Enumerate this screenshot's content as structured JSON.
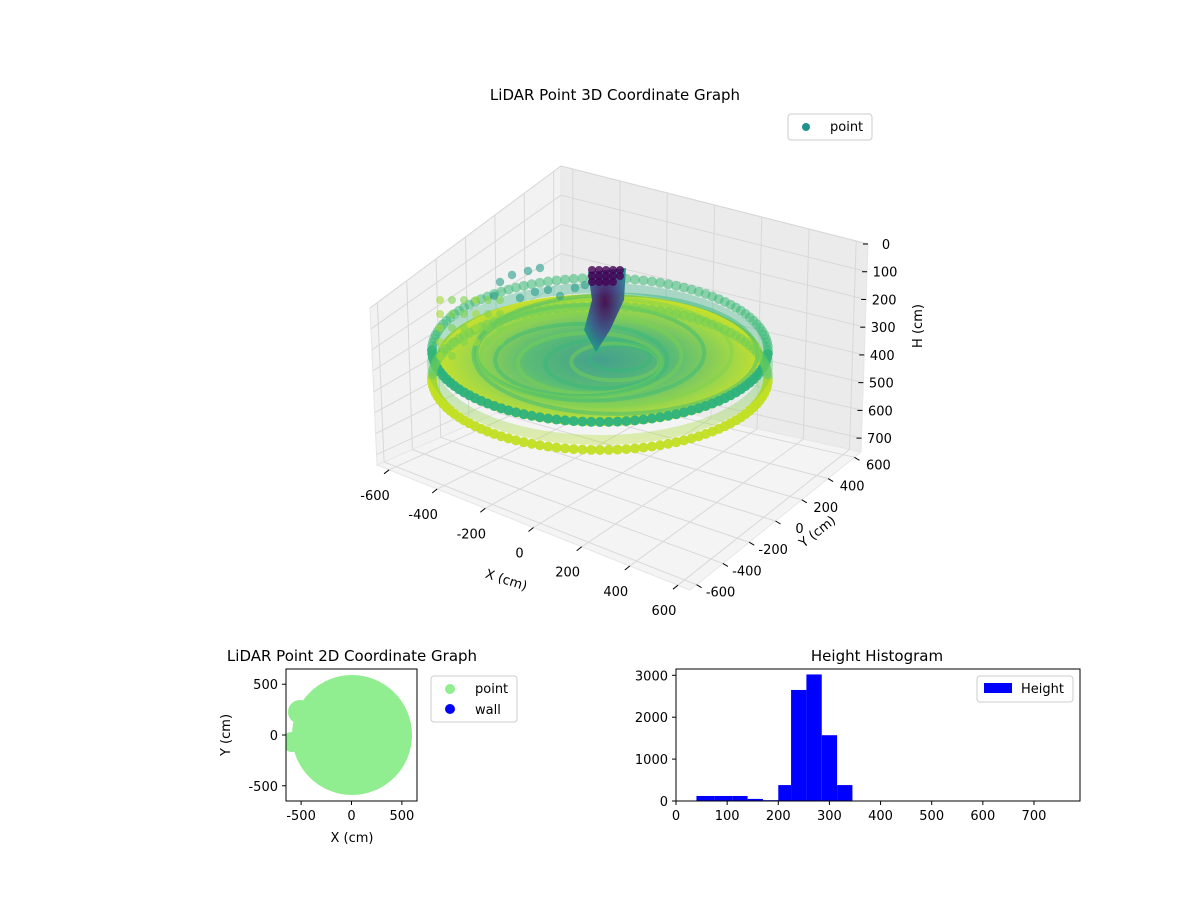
{
  "chart_data": [
    {
      "type": "scatter",
      "projection": "3d",
      "title": "LiDAR Point 3D Coordinate Graph",
      "xlabel": "X (cm)",
      "ylabel": "Y (cm)",
      "zlabel": "H (cm)",
      "xlim": [
        -650,
        650
      ],
      "ylim": [
        -650,
        650
      ],
      "zlim": [
        750,
        0
      ],
      "z_inverted": true,
      "xticks": [
        -600,
        -400,
        -200,
        0,
        200,
        400,
        600
      ],
      "yticks": [
        -600,
        -400,
        -200,
        0,
        200,
        400,
        600
      ],
      "zticks": [
        0,
        100,
        200,
        300,
        400,
        500,
        600,
        700
      ],
      "grid": true,
      "legend": {
        "position": "top-right",
        "entries": [
          "point"
        ]
      },
      "colormap": "viridis (by height)",
      "series": [
        {
          "name": "point",
          "color": "#21918c",
          "description_points": [
            {
              "shape": "ring",
              "radius": 600,
              "z_range": [
                260,
                340
              ]
            },
            {
              "shape": "interior",
              "radius": 550,
              "z_range": [
                230,
                320
              ]
            },
            {
              "shape": "cluster",
              "x": 150,
              "y": 500,
              "z_range": [
                40,
                200
              ]
            }
          ]
        }
      ]
    },
    {
      "type": "scatter",
      "title": "LiDAR Point 2D Coordinate Graph",
      "xlabel": "X (cm)",
      "ylabel": "Y (cm)",
      "xlim": [
        -650,
        650
      ],
      "ylim": [
        -650,
        650
      ],
      "xticks": [
        -500,
        0,
        500
      ],
      "yticks": [
        -500,
        0,
        500
      ],
      "legend": {
        "position": "outside-right",
        "entries": [
          "point",
          "wall"
        ]
      },
      "series": [
        {
          "name": "point",
          "color": "#90ee90",
          "shape": "disk",
          "center": [
            0,
            0
          ],
          "radius": 600
        },
        {
          "name": "wall",
          "color": "#0000ff",
          "values": []
        }
      ]
    },
    {
      "type": "bar",
      "histogram": true,
      "title": "Height Histogram",
      "xlim": [
        0,
        790
      ],
      "ylim": [
        0,
        3150
      ],
      "xticks": [
        0,
        100,
        200,
        300,
        400,
        500,
        600,
        700
      ],
      "yticks": [
        0,
        1000,
        2000,
        3000
      ],
      "legend": {
        "position": "top-right",
        "entries": [
          "Height"
        ]
      },
      "series": [
        {
          "name": "Height",
          "color": "#0000ff",
          "bins": [
            {
              "x0": 40,
              "x1": 75,
              "value": 120
            },
            {
              "x0": 75,
              "x1": 110,
              "value": 120
            },
            {
              "x0": 110,
              "x1": 140,
              "value": 120
            },
            {
              "x0": 140,
              "x1": 170,
              "value": 50
            },
            {
              "x0": 170,
              "x1": 200,
              "value": 20
            },
            {
              "x0": 200,
              "x1": 225,
              "value": 380
            },
            {
              "x0": 225,
              "x1": 255,
              "value": 2650
            },
            {
              "x0": 255,
              "x1": 285,
              "value": 3020
            },
            {
              "x0": 285,
              "x1": 315,
              "value": 1570
            },
            {
              "x0": 315,
              "x1": 345,
              "value": 380
            },
            {
              "x0": 345,
              "x1": 375,
              "value": 5
            },
            {
              "x0": 375,
              "x1": 790,
              "value": 2
            }
          ]
        }
      ]
    }
  ]
}
